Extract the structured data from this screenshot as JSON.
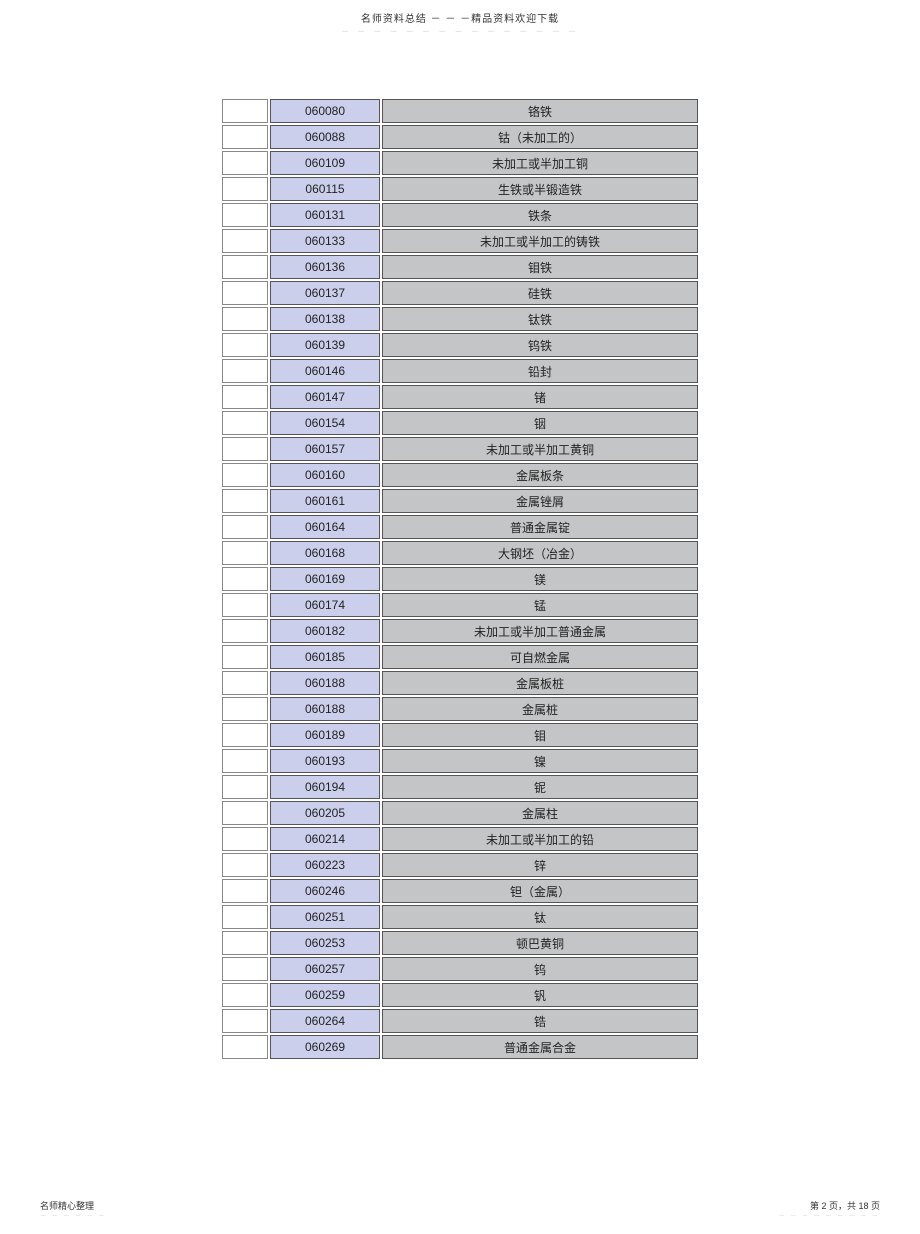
{
  "header": {
    "title": "名师资料总结 － － －精品资料欢迎下载",
    "dots": "－ － － － － － － － － － － － － － －"
  },
  "footer": {
    "left": "名师精心整理",
    "left_dots": "－ － － － － －",
    "right": "第 2 页，共 18 页",
    "right_dots": "－ － － － － － － － －"
  },
  "table": {
    "rows": [
      {
        "code": "060080",
        "name": "铬铁"
      },
      {
        "code": "060088",
        "name": "钴（未加工的）"
      },
      {
        "code": "060109",
        "name": "未加工或半加工铜"
      },
      {
        "code": "060115",
        "name": "生铁或半锻造铁"
      },
      {
        "code": "060131",
        "name": "铁条"
      },
      {
        "code": "060133",
        "name": "未加工或半加工的铸铁"
      },
      {
        "code": "060136",
        "name": "钼铁"
      },
      {
        "code": "060137",
        "name": "硅铁"
      },
      {
        "code": "060138",
        "name": "钛铁"
      },
      {
        "code": "060139",
        "name": "钨铁"
      },
      {
        "code": "060146",
        "name": "铅封"
      },
      {
        "code": "060147",
        "name": "锗"
      },
      {
        "code": "060154",
        "name": "铟"
      },
      {
        "code": "060157",
        "name": "未加工或半加工黄铜"
      },
      {
        "code": "060160",
        "name": "金属板条"
      },
      {
        "code": "060161",
        "name": "金属锉屑"
      },
      {
        "code": "060164",
        "name": "普通金属锭"
      },
      {
        "code": "060168",
        "name": "大钢坯（冶金）"
      },
      {
        "code": "060169",
        "name": "镁"
      },
      {
        "code": "060174",
        "name": "锰"
      },
      {
        "code": "060182",
        "name": "未加工或半加工普通金属"
      },
      {
        "code": "060185",
        "name": "可自燃金属"
      },
      {
        "code": "060188",
        "name": "金属板桩"
      },
      {
        "code": "060188",
        "name": "金属桩"
      },
      {
        "code": "060189",
        "name": "钼"
      },
      {
        "code": "060193",
        "name": "镍"
      },
      {
        "code": "060194",
        "name": "铌"
      },
      {
        "code": "060205",
        "name": "金属柱"
      },
      {
        "code": "060214",
        "name": "未加工或半加工的铅"
      },
      {
        "code": "060223",
        "name": "锌"
      },
      {
        "code": "060246",
        "name": "钽（金属）"
      },
      {
        "code": "060251",
        "name": "钛"
      },
      {
        "code": "060253",
        "name": "顿巴黄铜"
      },
      {
        "code": "060257",
        "name": "钨"
      },
      {
        "code": "060259",
        "name": "钒"
      },
      {
        "code": "060264",
        "name": "锆"
      },
      {
        "code": "060269",
        "name": "普通金属合金"
      }
    ]
  },
  "colors": {
    "code_bg": "#cccfec",
    "name_bg": "#c3c5c6",
    "blank_bg": "#ffffff",
    "border": "#555555"
  }
}
